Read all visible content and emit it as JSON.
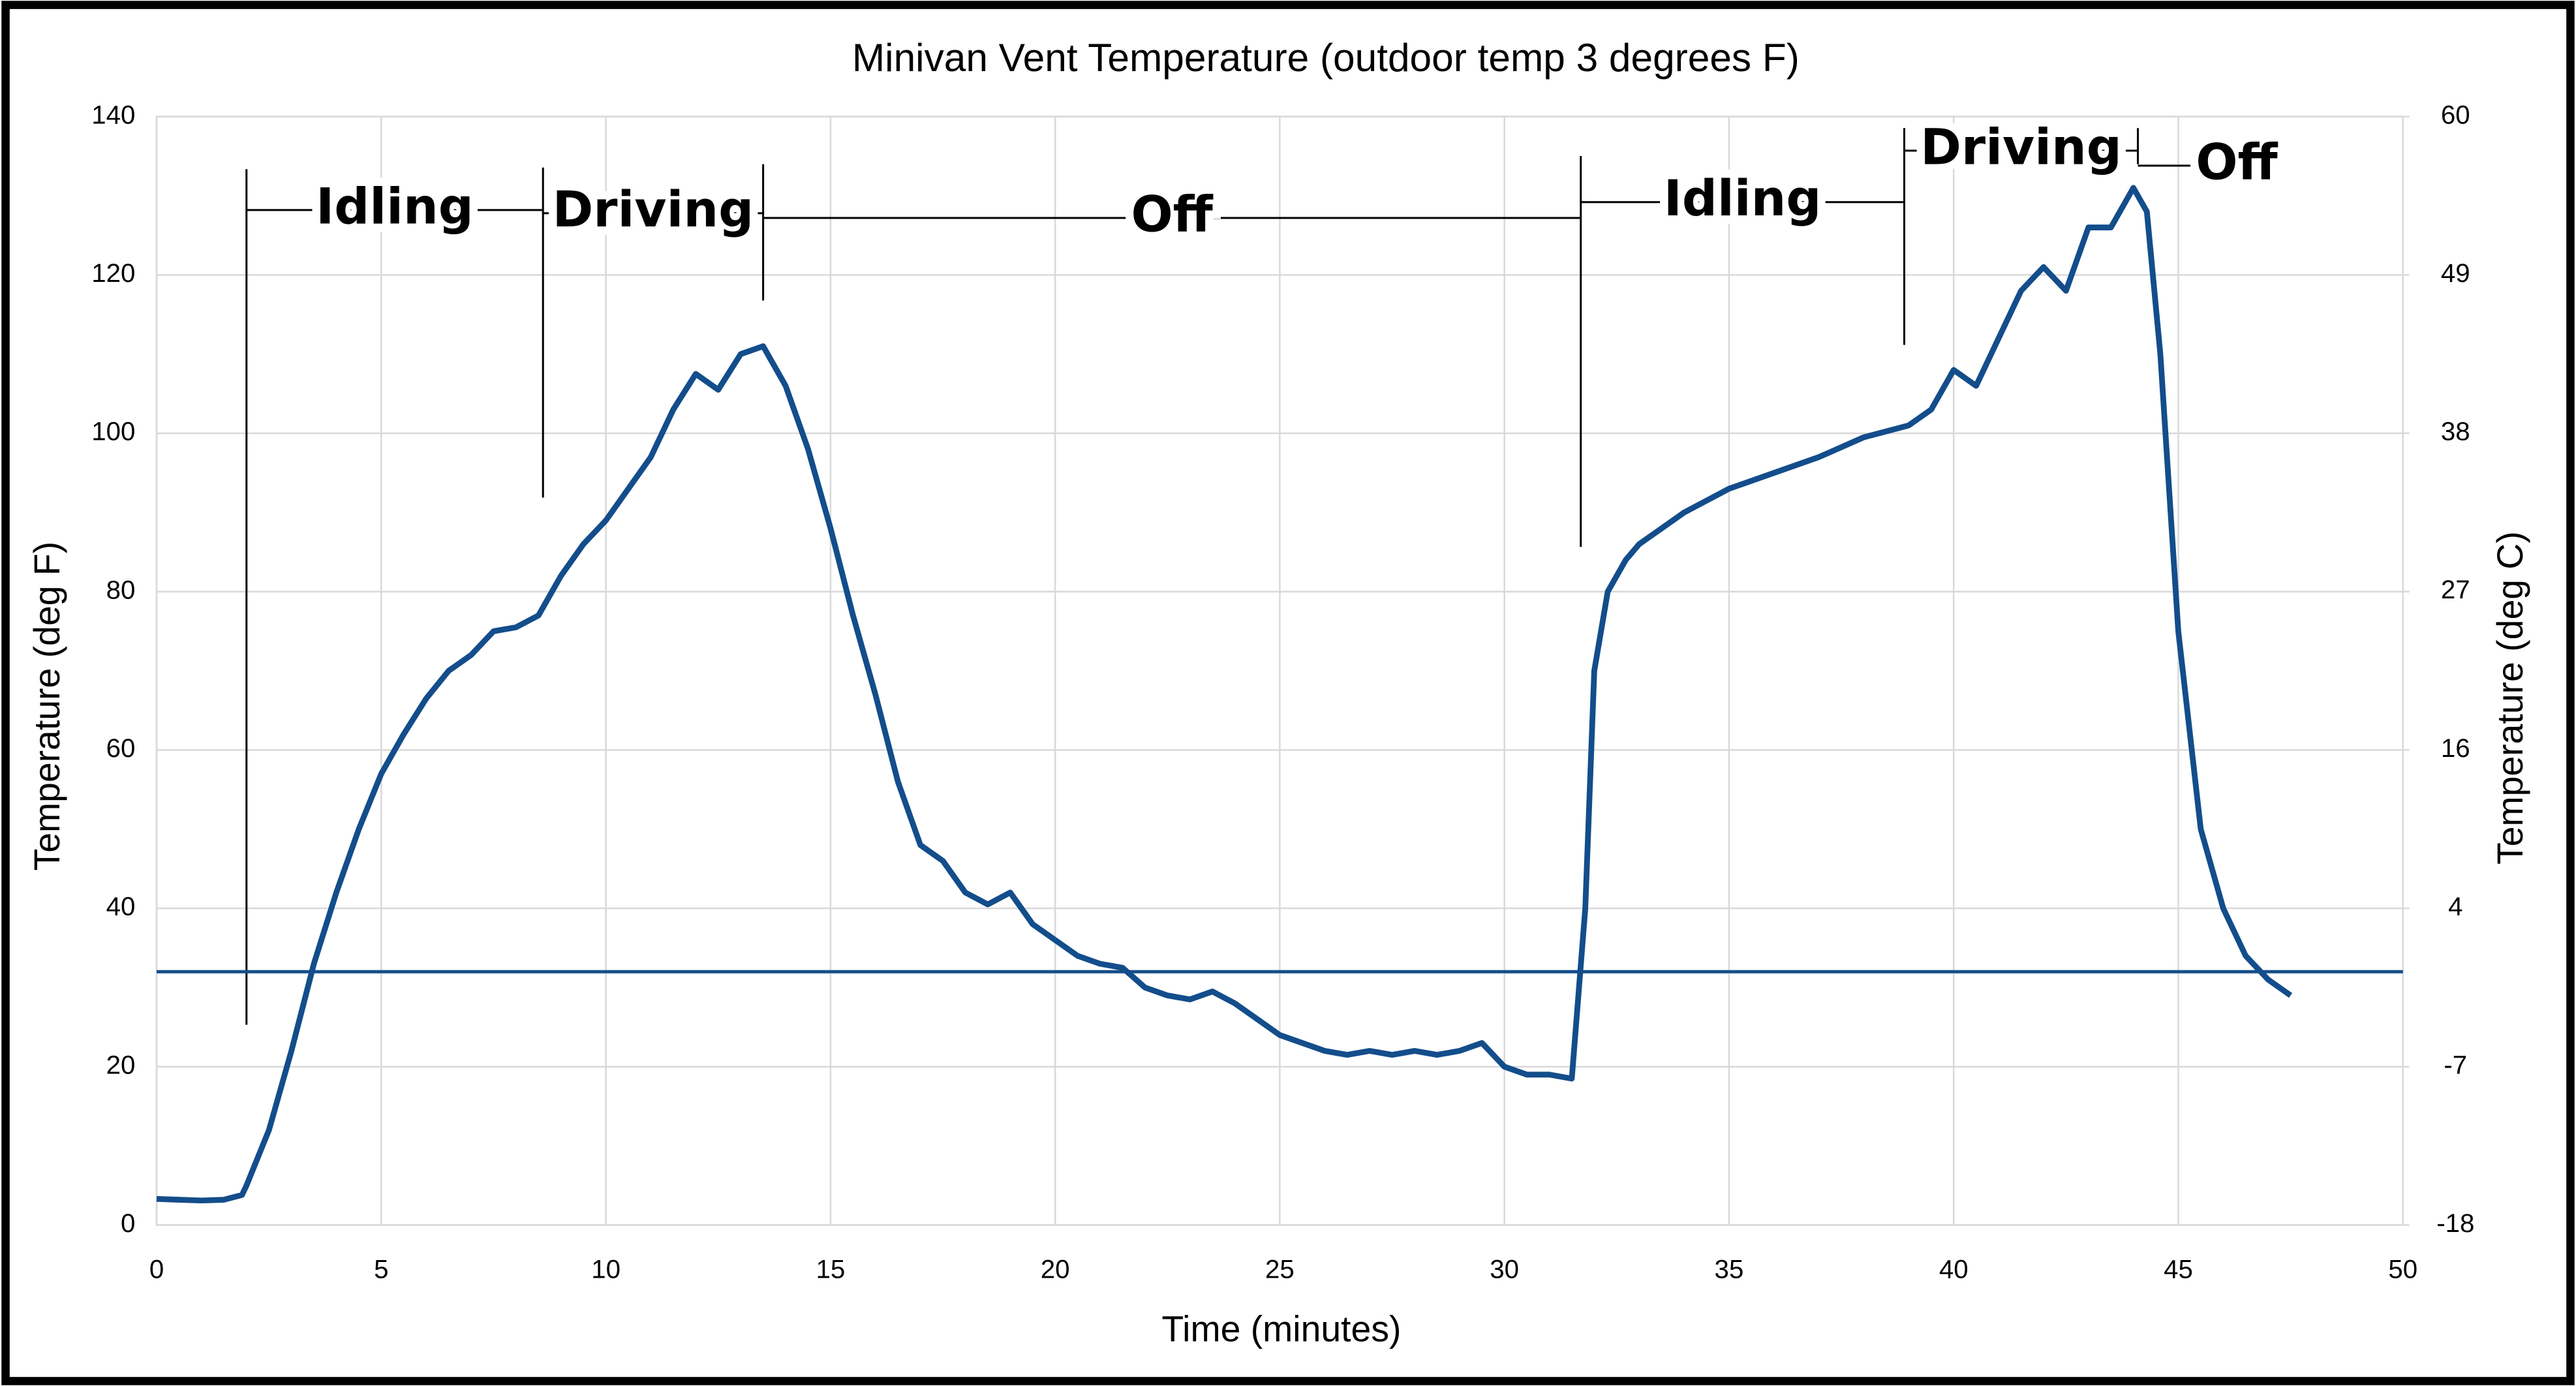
{
  "chart_data": {
    "type": "line",
    "title": "Minivan Vent Temperature (outdoor temp 3 degrees F)",
    "x_label": "Time (minutes)",
    "y_label": "Temperature (deg F)",
    "y2_label": "Temperature (deg C)",
    "xlim": [
      0,
      50
    ],
    "xticks": [
      0,
      5,
      10,
      15,
      20,
      25,
      30,
      35,
      40,
      45,
      50
    ],
    "ylim": [
      0,
      140
    ],
    "yticks": [
      0,
      20,
      40,
      60,
      80,
      100,
      120,
      140
    ],
    "y2lim": [
      -17.78,
      60
    ],
    "y2ticks": [
      {
        "value": -17.78,
        "label": "-18"
      },
      {
        "value": -6.67,
        "label": "-7"
      },
      {
        "value": 4.44,
        "label": "4"
      },
      {
        "value": 15.56,
        "label": "16"
      },
      {
        "value": 26.67,
        "label": "27"
      },
      {
        "value": 37.78,
        "label": "38"
      },
      {
        "value": 48.89,
        "label": "49"
      },
      {
        "value": 60,
        "label": "60"
      }
    ],
    "grid": true,
    "hlines": [
      32
    ],
    "phases": [
      {
        "label": "Idling",
        "start": 2,
        "end": 8.6,
        "y": 128.2
      },
      {
        "label": "Driving",
        "start": 8.6,
        "end": 13.5,
        "y": 127.8
      },
      {
        "label": "Off",
        "start": 13.5,
        "end": 31.7,
        "y": 127.2
      },
      {
        "label": "Idling",
        "start": 31.7,
        "end": 38.9,
        "y": 129.2
      },
      {
        "label": "Driving",
        "start": 38.9,
        "end": 44.1,
        "y": 135.7
      },
      {
        "label": "Off",
        "start": 44.1,
        "end": 48.5,
        "y": 133.8
      }
    ],
    "x": [
      0,
      0.5,
      1,
      1.5,
      1.9,
      2,
      2.5,
      3,
      3.5,
      4,
      4.5,
      5,
      5.5,
      6,
      6.5,
      7,
      7.5,
      8,
      8.5,
      9,
      9.5,
      10,
      10.5,
      11,
      11.5,
      12,
      12.5,
      13,
      13.5,
      14,
      14.5,
      15,
      15.5,
      16,
      16.5,
      17,
      17.5,
      18,
      18.5,
      19,
      19.5,
      20,
      20.5,
      21,
      21.5,
      22,
      22.5,
      23,
      23.5,
      24,
      24.5,
      25,
      25.5,
      26,
      26.5,
      27,
      27.5,
      28,
      28.5,
      29,
      29.5,
      30,
      30.5,
      31,
      31.5,
      31.8,
      32,
      32.3,
      32.7,
      33,
      34,
      35,
      36,
      37,
      38,
      39,
      39.5,
      40,
      40.5,
      41,
      41.5,
      42,
      42.5,
      43,
      43.5,
      44,
      44.3,
      44.6,
      45,
      45.5,
      46,
      46.5,
      47,
      47.5
    ],
    "series": [
      {
        "color": "#134d8b",
        "values": [
          3.3,
          3.2,
          3.1,
          3.2,
          3.8,
          5,
          12,
          22,
          33,
          42,
          50,
          57,
          62,
          66.5,
          70,
          72,
          75,
          75.5,
          77,
          82,
          86,
          89,
          93,
          97,
          103,
          107.5,
          105.5,
          110,
          111,
          106,
          98,
          88,
          77,
          67,
          56,
          48,
          46,
          42,
          40.5,
          42,
          38,
          36,
          34,
          33,
          32.5,
          30,
          29,
          28.5,
          29.5,
          28,
          26,
          24,
          23,
          22,
          21.5,
          22,
          21.5,
          22,
          21.5,
          22,
          23,
          20,
          19,
          19,
          18.5,
          40,
          70,
          80,
          84,
          86,
          90,
          93,
          95,
          97,
          99.5,
          101,
          103,
          108,
          106,
          112,
          118,
          121,
          118,
          126,
          126,
          131,
          128,
          110,
          75,
          50,
          40,
          34,
          31,
          29
        ]
      }
    ]
  }
}
